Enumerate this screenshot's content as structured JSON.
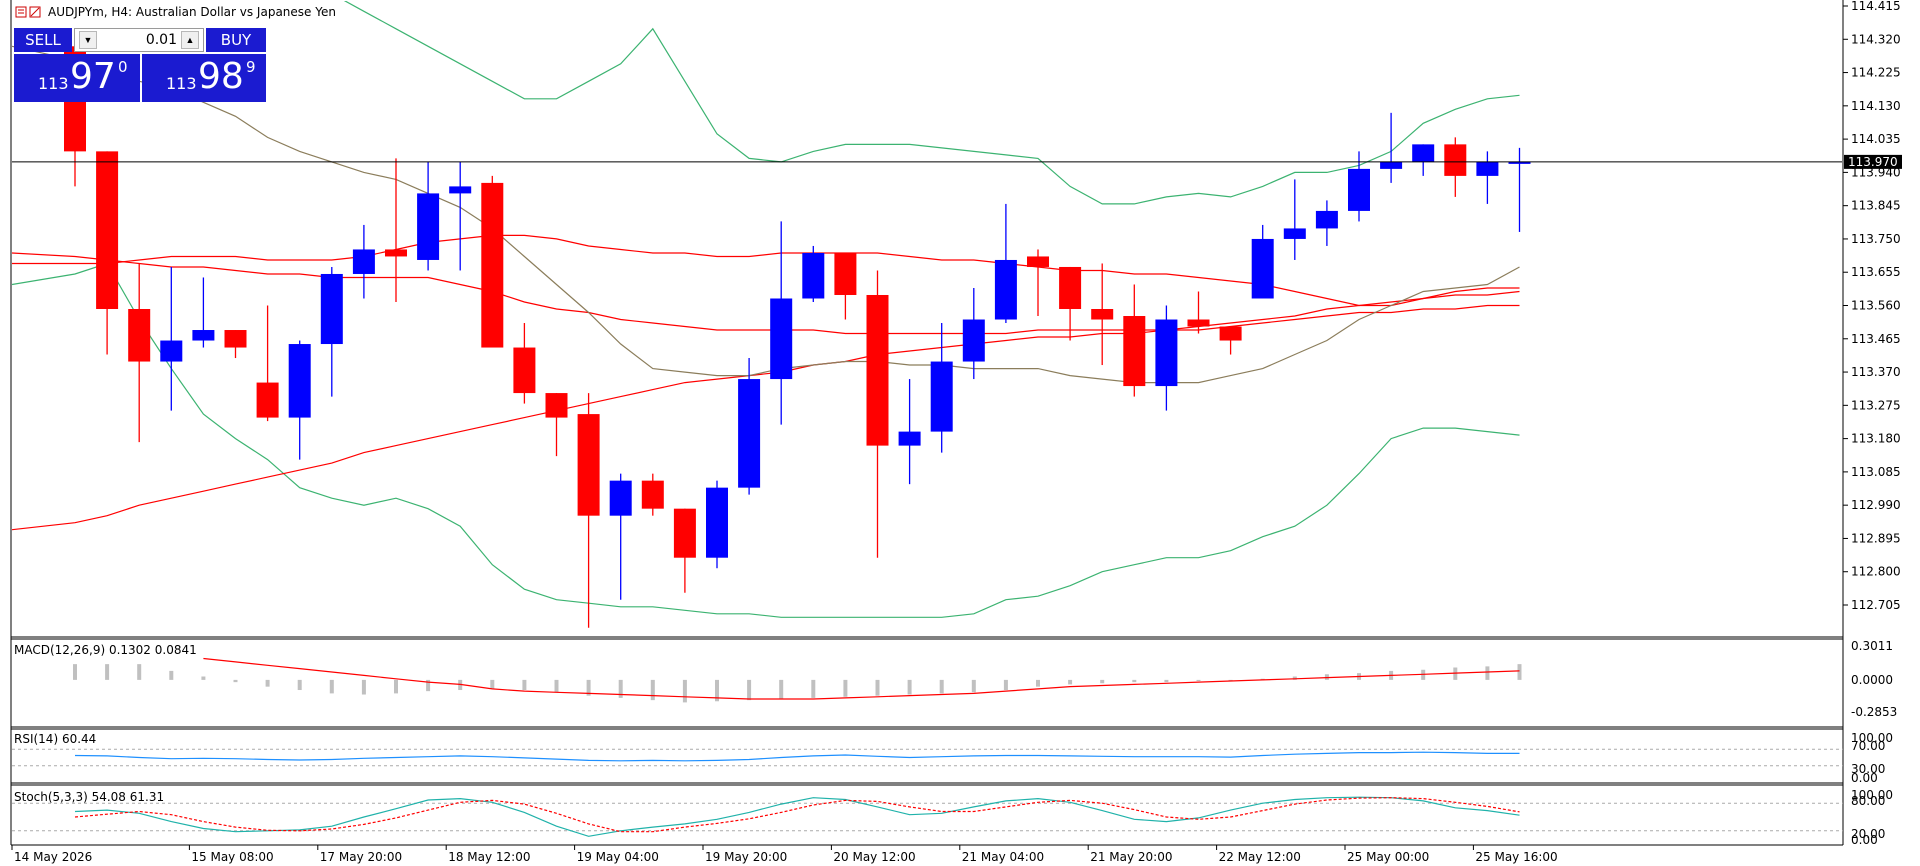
{
  "header": {
    "symbol_line": "AUDJPYm, H4:  Australian Dollar vs Japanese Yen"
  },
  "trade_panel": {
    "sell_label": "SELL",
    "buy_label": "BUY",
    "lot_value": "0.01",
    "sell_prefix": "113",
    "sell_big": "97",
    "sell_sup": "0",
    "buy_prefix": "113",
    "buy_big": "98",
    "buy_sup": "9"
  },
  "colors": {
    "bull": "#0000ff",
    "bear": "#ff0000",
    "bollinger": "#3cb371",
    "ma_fast": "#8b7d5b",
    "ma_slow": "#ff0000",
    "rsi": "#1e90ff",
    "stoch_main": "#20b2aa",
    "stoch_signal": "#ff0000"
  },
  "chart_data": {
    "type": "candlestick",
    "timeframe": "H4",
    "current_price": "113.970",
    "price_axis": {
      "labels": [
        "114.415",
        "114.320",
        "114.225",
        "114.130",
        "114.035",
        "113.940",
        "113.845",
        "113.750",
        "113.655",
        "113.560",
        "113.465",
        "113.370",
        "113.275",
        "113.180",
        "113.085",
        "112.990",
        "112.895",
        "112.800",
        "112.705"
      ],
      "ylim": [
        112.64,
        114.43
      ]
    },
    "time_axis": {
      "labels": [
        "14 May 2026",
        "15 May 08:00",
        "17 May 20:00",
        "18 May 12:00",
        "19 May 04:00",
        "19 May 20:00",
        "20 May 12:00",
        "21 May 04:00",
        "21 May 20:00",
        "22 May 12:00",
        "25 May 00:00",
        "25 May 16:00"
      ],
      "label_bar_index": [
        0,
        4,
        8,
        12,
        16,
        20,
        24,
        28,
        32,
        36,
        40,
        44
      ]
    },
    "candles": [
      {
        "o": 114.3,
        "h": 114.3,
        "l": 113.9,
        "c": 114.0
      },
      {
        "o": 114.0,
        "h": 114.0,
        "l": 113.42,
        "c": 113.55
      },
      {
        "o": 113.55,
        "h": 113.68,
        "l": 113.17,
        "c": 113.4
      },
      {
        "o": 113.4,
        "h": 113.67,
        "l": 113.26,
        "c": 113.46
      },
      {
        "o": 113.46,
        "h": 113.64,
        "l": 113.44,
        "c": 113.49
      },
      {
        "o": 113.49,
        "h": 113.49,
        "l": 113.41,
        "c": 113.44
      },
      {
        "o": 113.34,
        "h": 113.56,
        "l": 113.23,
        "c": 113.24
      },
      {
        "o": 113.24,
        "h": 113.46,
        "l": 113.12,
        "c": 113.45
      },
      {
        "o": 113.45,
        "h": 113.67,
        "l": 113.3,
        "c": 113.65
      },
      {
        "o": 113.65,
        "h": 113.79,
        "l": 113.58,
        "c": 113.72
      },
      {
        "o": 113.72,
        "h": 113.98,
        "l": 113.57,
        "c": 113.7
      },
      {
        "o": 113.69,
        "h": 113.97,
        "l": 113.66,
        "c": 113.88
      },
      {
        "o": 113.88,
        "h": 113.97,
        "l": 113.66,
        "c": 113.9
      },
      {
        "o": 113.91,
        "h": 113.93,
        "l": 113.44,
        "c": 113.44
      },
      {
        "o": 113.44,
        "h": 113.51,
        "l": 113.28,
        "c": 113.31
      },
      {
        "o": 113.31,
        "h": 113.31,
        "l": 113.13,
        "c": 113.24
      },
      {
        "o": 113.25,
        "h": 113.31,
        "l": 112.64,
        "c": 112.96
      },
      {
        "o": 112.96,
        "h": 113.08,
        "l": 112.72,
        "c": 113.06
      },
      {
        "o": 113.06,
        "h": 113.08,
        "l": 112.96,
        "c": 112.98
      },
      {
        "o": 112.98,
        "h": 112.98,
        "l": 112.74,
        "c": 112.84
      },
      {
        "o": 112.84,
        "h": 113.06,
        "l": 112.81,
        "c": 113.04
      },
      {
        "o": 113.04,
        "h": 113.41,
        "l": 113.02,
        "c": 113.35
      },
      {
        "o": 113.35,
        "h": 113.8,
        "l": 113.22,
        "c": 113.58
      },
      {
        "o": 113.58,
        "h": 113.73,
        "l": 113.57,
        "c": 113.71
      },
      {
        "o": 113.71,
        "h": 113.71,
        "l": 113.52,
        "c": 113.59
      },
      {
        "o": 113.59,
        "h": 113.66,
        "l": 112.84,
        "c": 113.16
      },
      {
        "o": 113.16,
        "h": 113.35,
        "l": 113.05,
        "c": 113.2
      },
      {
        "o": 113.2,
        "h": 113.51,
        "l": 113.14,
        "c": 113.4
      },
      {
        "o": 113.4,
        "h": 113.61,
        "l": 113.35,
        "c": 113.52
      },
      {
        "o": 113.52,
        "h": 113.85,
        "l": 113.51,
        "c": 113.69
      },
      {
        "o": 113.7,
        "h": 113.72,
        "l": 113.53,
        "c": 113.67
      },
      {
        "o": 113.67,
        "h": 113.67,
        "l": 113.46,
        "c": 113.55
      },
      {
        "o": 113.55,
        "h": 113.68,
        "l": 113.39,
        "c": 113.52
      },
      {
        "o": 113.53,
        "h": 113.62,
        "l": 113.3,
        "c": 113.33
      },
      {
        "o": 113.33,
        "h": 113.56,
        "l": 113.26,
        "c": 113.52
      },
      {
        "o": 113.52,
        "h": 113.6,
        "l": 113.48,
        "c": 113.5
      },
      {
        "o": 113.5,
        "h": 113.5,
        "l": 113.42,
        "c": 113.46
      },
      {
        "o": 113.58,
        "h": 113.79,
        "l": 113.58,
        "c": 113.75
      },
      {
        "o": 113.75,
        "h": 113.92,
        "l": 113.69,
        "c": 113.78
      },
      {
        "o": 113.78,
        "h": 113.86,
        "l": 113.73,
        "c": 113.83
      },
      {
        "o": 113.83,
        "h": 114.0,
        "l": 113.8,
        "c": 113.95
      },
      {
        "o": 113.95,
        "h": 114.11,
        "l": 113.91,
        "c": 113.97
      },
      {
        "o": 113.97,
        "h": 114.02,
        "l": 113.93,
        "c": 114.02
      },
      {
        "o": 114.02,
        "h": 114.04,
        "l": 113.87,
        "c": 113.93
      },
      {
        "o": 113.93,
        "h": 114.0,
        "l": 113.85,
        "c": 113.97
      },
      {
        "o": 113.97,
        "h": 114.01,
        "l": 113.77,
        "c": 113.97
      }
    ],
    "overlays": {
      "bollinger_upper": [
        114.6,
        114.75,
        114.75,
        114.7,
        114.62,
        114.55,
        114.5,
        114.48,
        114.45,
        114.4,
        114.35,
        114.3,
        114.25,
        114.2,
        114.15,
        114.15,
        114.2,
        114.25,
        114.35,
        114.2,
        114.05,
        113.98,
        113.97,
        114.0,
        114.02,
        114.02,
        114.02,
        114.01,
        114.0,
        113.99,
        113.98,
        113.9,
        113.85,
        113.85,
        113.87,
        113.88,
        113.87,
        113.9,
        113.94,
        113.94,
        113.96,
        114.0,
        114.08,
        114.12,
        114.15,
        114.16
      ],
      "bollinger_lower": [
        113.65,
        113.68,
        113.52,
        113.38,
        113.25,
        113.18,
        113.12,
        113.04,
        113.01,
        112.99,
        113.01,
        112.98,
        112.93,
        112.82,
        112.75,
        112.72,
        112.71,
        112.7,
        112.7,
        112.69,
        112.68,
        112.68,
        112.67,
        112.67,
        112.67,
        112.67,
        112.67,
        112.67,
        112.68,
        112.72,
        112.73,
        112.76,
        112.8,
        112.82,
        112.84,
        112.84,
        112.86,
        112.9,
        112.93,
        112.99,
        113.08,
        113.18,
        113.21,
        113.21,
        113.2,
        113.19
      ],
      "ma_fast": [
        114.26,
        114.22,
        114.2,
        114.18,
        114.14,
        114.1,
        114.04,
        114.0,
        113.97,
        113.94,
        113.92,
        113.88,
        113.84,
        113.78,
        113.7,
        113.62,
        113.54,
        113.45,
        113.38,
        113.37,
        113.36,
        113.36,
        113.38,
        113.39,
        113.4,
        113.4,
        113.39,
        113.39,
        113.38,
        113.38,
        113.38,
        113.36,
        113.35,
        113.34,
        113.34,
        113.34,
        113.36,
        113.38,
        113.42,
        113.46,
        113.52,
        113.56,
        113.6,
        113.61,
        113.62,
        113.67
      ],
      "ma_slow_upper": [
        113.68,
        113.68,
        113.69,
        113.7,
        113.7,
        113.7,
        113.69,
        113.69,
        113.69,
        113.7,
        113.72,
        113.74,
        113.75,
        113.76,
        113.76,
        113.75,
        113.73,
        113.72,
        113.71,
        113.71,
        113.7,
        113.7,
        113.71,
        113.71,
        113.71,
        113.71,
        113.7,
        113.69,
        113.69,
        113.68,
        113.67,
        113.66,
        113.66,
        113.65,
        113.65,
        113.64,
        113.63,
        113.62,
        113.6,
        113.58,
        113.56,
        113.56,
        113.58,
        113.6,
        113.61,
        113.61
      ],
      "ma_slow_mid": [
        113.7,
        113.69,
        113.68,
        113.67,
        113.67,
        113.66,
        113.65,
        113.65,
        113.64,
        113.64,
        113.64,
        113.64,
        113.62,
        113.6,
        113.57,
        113.55,
        113.54,
        113.52,
        113.51,
        113.5,
        113.49,
        113.49,
        113.49,
        113.49,
        113.48,
        113.48,
        113.48,
        113.48,
        113.48,
        113.48,
        113.49,
        113.49,
        113.49,
        113.49,
        113.49,
        113.5,
        113.51,
        113.52,
        113.53,
        113.55,
        113.56,
        113.57,
        113.58,
        113.59,
        113.59,
        113.6
      ],
      "ma_slow_lower": [
        112.94,
        112.96,
        112.99,
        113.01,
        113.03,
        113.05,
        113.07,
        113.09,
        113.11,
        113.14,
        113.16,
        113.18,
        113.2,
        113.22,
        113.24,
        113.26,
        113.28,
        113.3,
        113.32,
        113.34,
        113.35,
        113.36,
        113.37,
        113.39,
        113.4,
        113.42,
        113.43,
        113.44,
        113.45,
        113.46,
        113.47,
        113.47,
        113.48,
        113.48,
        113.49,
        113.49,
        113.5,
        113.51,
        113.52,
        113.53,
        113.54,
        113.54,
        113.55,
        113.55,
        113.56,
        113.56
      ]
    },
    "macd": {
      "label": "MACD(12,26,9) 0.1302 0.0841",
      "axis_labels": [
        "0.3011",
        "0.0000",
        "-0.2853"
      ],
      "ylim": [
        -0.2853,
        0.3011
      ],
      "histogram": [
        0.14,
        0.14,
        0.14,
        0.08,
        0.03,
        -0.02,
        -0.06,
        -0.09,
        -0.12,
        -0.13,
        -0.12,
        -0.1,
        -0.09,
        -0.08,
        -0.09,
        -0.11,
        -0.14,
        -0.16,
        -0.18,
        -0.2,
        -0.19,
        -0.18,
        -0.17,
        -0.16,
        -0.15,
        -0.14,
        -0.13,
        -0.12,
        -0.11,
        -0.09,
        -0.06,
        -0.04,
        -0.03,
        -0.02,
        -0.02,
        -0.01,
        -0.01,
        0.01,
        0.03,
        0.05,
        0.06,
        0.08,
        0.09,
        0.11,
        0.12,
        0.14
      ],
      "signal": [
        null,
        null,
        null,
        null,
        0.19,
        0.16,
        0.13,
        0.1,
        0.07,
        0.04,
        0.01,
        -0.02,
        -0.04,
        -0.08,
        -0.1,
        -0.11,
        -0.12,
        -0.13,
        -0.14,
        -0.15,
        -0.16,
        -0.17,
        -0.17,
        -0.17,
        -0.16,
        -0.15,
        -0.14,
        -0.13,
        -0.12,
        -0.1,
        -0.08,
        -0.06,
        -0.05,
        -0.04,
        -0.03,
        -0.02,
        -0.01,
        0.0,
        0.01,
        0.02,
        0.03,
        0.04,
        0.05,
        0.06,
        0.07,
        0.08
      ]
    },
    "rsi": {
      "label": "RSI(14) 60.44",
      "axis_labels": [
        "100.00",
        "70.00",
        "30.00",
        "0.00"
      ],
      "levels": [
        70,
        30
      ],
      "values": [
        55,
        54,
        50,
        47,
        48,
        47,
        45,
        44,
        45,
        48,
        50,
        52,
        54,
        52,
        49,
        46,
        43,
        42,
        43,
        42,
        43,
        45,
        50,
        54,
        56,
        53,
        50,
        52,
        54,
        55,
        55,
        54,
        53,
        52,
        52,
        52,
        51,
        55,
        58,
        60,
        62,
        62,
        63,
        62,
        60,
        60
      ]
    },
    "stoch": {
      "label": "Stoch(5,3,3) 54.08 61.31",
      "axis_labels": [
        "100.00",
        "80.00",
        "20.00",
        "0.00"
      ],
      "levels": [
        80,
        20
      ],
      "main": [
        62,
        65,
        58,
        40,
        25,
        18,
        20,
        22,
        30,
        50,
        68,
        87,
        90,
        82,
        60,
        30,
        8,
        20,
        28,
        35,
        45,
        60,
        78,
        92,
        88,
        72,
        55,
        58,
        72,
        85,
        90,
        82,
        64,
        45,
        40,
        48,
        65,
        80,
        88,
        92,
        93,
        92,
        85,
        70,
        64,
        54
      ],
      "signal": [
        50,
        56,
        62,
        55,
        40,
        28,
        21,
        20,
        24,
        34,
        48,
        65,
        82,
        86,
        78,
        58,
        35,
        18,
        18,
        28,
        36,
        46,
        60,
        76,
        86,
        84,
        72,
        62,
        62,
        72,
        82,
        86,
        80,
        66,
        50,
        45,
        50,
        64,
        78,
        87,
        91,
        92,
        90,
        82,
        73,
        61
      ]
    }
  }
}
